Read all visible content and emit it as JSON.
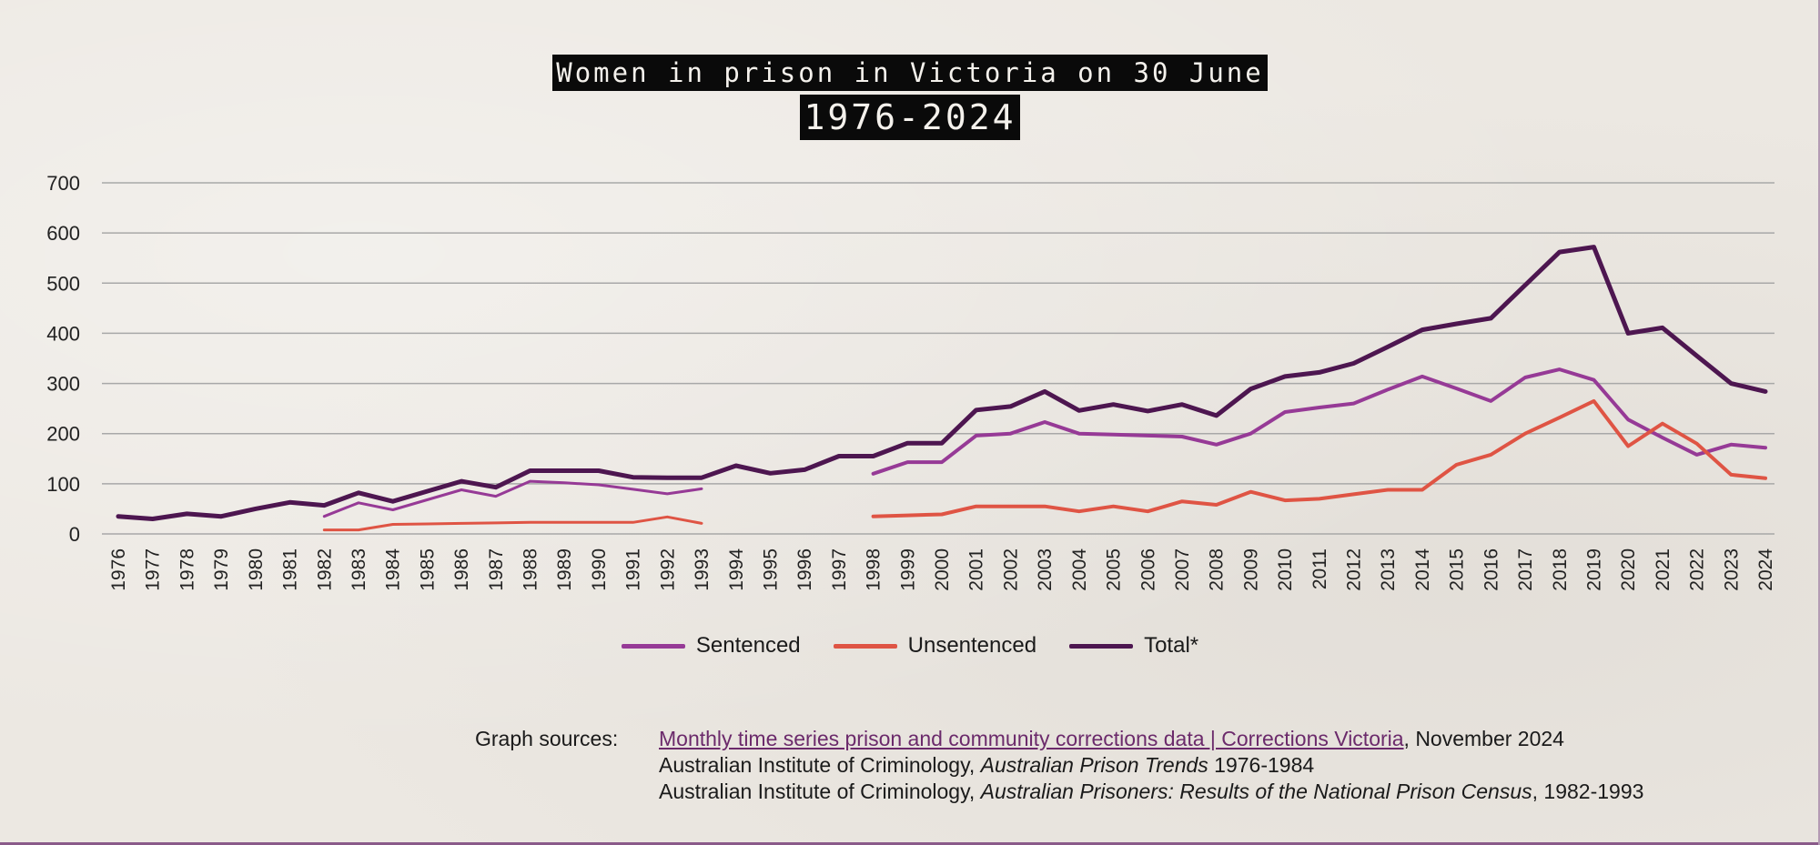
{
  "title": {
    "line1": "Women in prison in Victoria on 30 June",
    "line2": "1976-2024"
  },
  "colors": {
    "sentenced": "#963a96",
    "unsentenced": "#df5444",
    "total": "#4d1650",
    "grid": "#a8a8a8"
  },
  "chart_data": {
    "type": "line",
    "title": "Women in prison in Victoria on 30 June 1976-2024",
    "ylim": [
      0,
      700
    ],
    "yticks": [
      0,
      100,
      200,
      300,
      400,
      500,
      600,
      700
    ],
    "grid": true,
    "legend_position": "bottom-center",
    "x": [
      "1976",
      "1977",
      "1978",
      "1979",
      "1980",
      "1981",
      "1982",
      "1983",
      "1984",
      "1985",
      "1986",
      "1987",
      "1988",
      "1989",
      "1990",
      "1991",
      "1992",
      "1993",
      "1994",
      "1995",
      "1996",
      "1997",
      "1998",
      "1999",
      "2000",
      "2001",
      "2002",
      "2003",
      "2004",
      "2005",
      "2006",
      "2007",
      "2008",
      "2009",
      "2010",
      "2011",
      "2012",
      "2013",
      "2014",
      "2015",
      "2016",
      "2017",
      "2018",
      "2019",
      "2020",
      "2021",
      "2022",
      "2023",
      "2024"
    ],
    "series": [
      {
        "name": "Sentenced",
        "values": [
          null,
          null,
          null,
          null,
          null,
          null,
          35,
          62,
          48,
          68,
          88,
          75,
          105,
          102,
          98,
          89,
          80,
          90,
          null,
          null,
          null,
          null,
          120,
          143,
          143,
          196,
          200,
          223,
          200,
          198,
          196,
          194,
          178,
          200,
          243,
          252,
          260,
          288,
          314,
          290,
          265,
          312,
          328,
          307,
          228,
          192,
          158,
          178,
          172
        ]
      },
      {
        "name": "Unsentenced",
        "values": [
          null,
          null,
          null,
          null,
          null,
          null,
          8,
          8,
          19,
          20,
          21,
          22,
          23,
          23,
          23,
          23,
          34,
          21,
          null,
          null,
          null,
          null,
          35,
          37,
          39,
          55,
          55,
          55,
          45,
          55,
          45,
          65,
          58,
          84,
          67,
          70,
          79,
          88,
          88,
          138,
          158,
          200,
          232,
          265,
          175,
          220,
          180,
          118,
          111
        ]
      },
      {
        "name": "Total*",
        "values": [
          35,
          30,
          40,
          35,
          50,
          63,
          57,
          82,
          65,
          85,
          105,
          93,
          126,
          126,
          126,
          113,
          112,
          112,
          136,
          121,
          128,
          155,
          155,
          181,
          181,
          247,
          254,
          284,
          246,
          258,
          245,
          258,
          236,
          289,
          314,
          322,
          340,
          373,
          407,
          419,
          430,
          496,
          562,
          572,
          400,
          411,
          355,
          300,
          284
        ]
      }
    ],
    "legend": [
      "Sentenced",
      "Unsentenced",
      "Total*"
    ]
  },
  "sources": {
    "label": "Graph sources:",
    "line1_link": "Monthly time series prison and community corrections data | Corrections Victoria",
    "line1_rest": ", November 2024",
    "line2_prefix": "Australian Institute of Criminology, ",
    "line2_italic": "Australian Prison Trends",
    "line2_suffix": " 1976-1984",
    "line3_prefix": "Australian Institute of Criminology, ",
    "line3_italic": "Australian Prisoners: Results of the National Prison Census",
    "line3_suffix": ", 1982-1993"
  }
}
